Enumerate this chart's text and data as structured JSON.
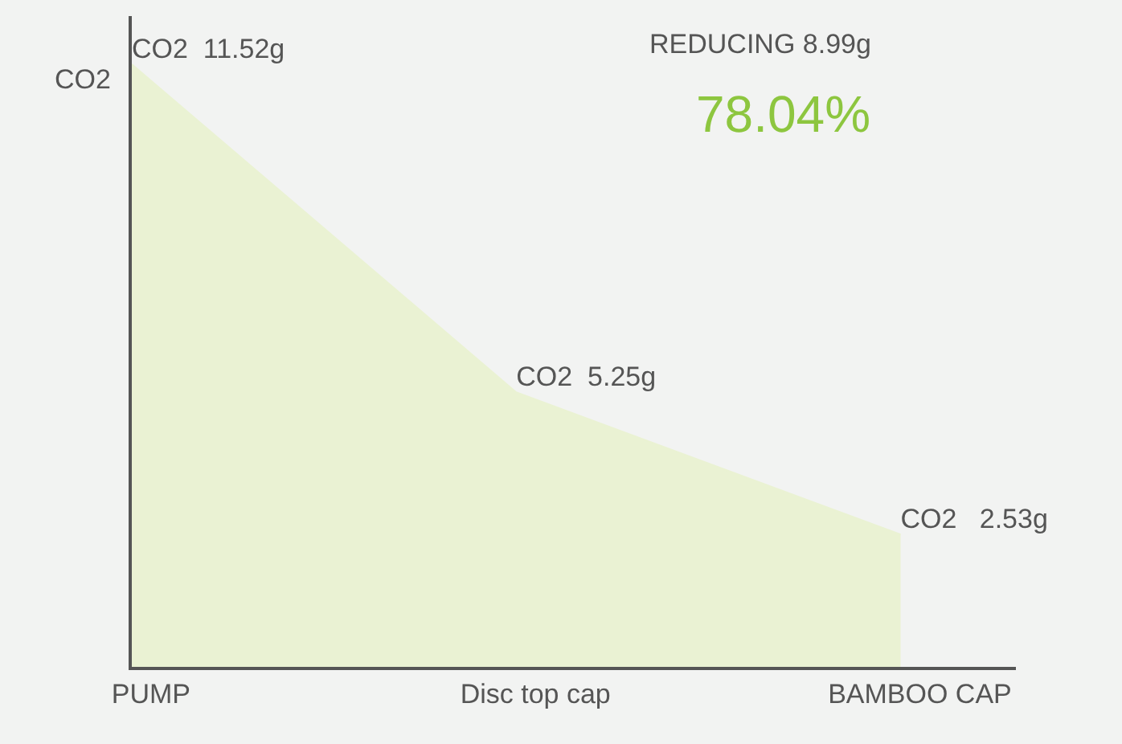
{
  "chart_data": {
    "type": "area",
    "ylabel": "CO2",
    "categories": [
      "PUMP",
      "Disc top cap",
      "BAMBOO CAP"
    ],
    "series": [
      {
        "color": "#eaf2d3",
        "values": [
          11.52,
          5.25,
          2.53
        ],
        "value_labels": [
          "CO2  11.52g",
          "CO2  5.25g",
          "CO2   2.53g"
        ]
      }
    ],
    "annotations": [
      "REDUCING 8.99g",
      "78.04%"
    ],
    "grid": false,
    "tick_labels": "x"
  }
}
